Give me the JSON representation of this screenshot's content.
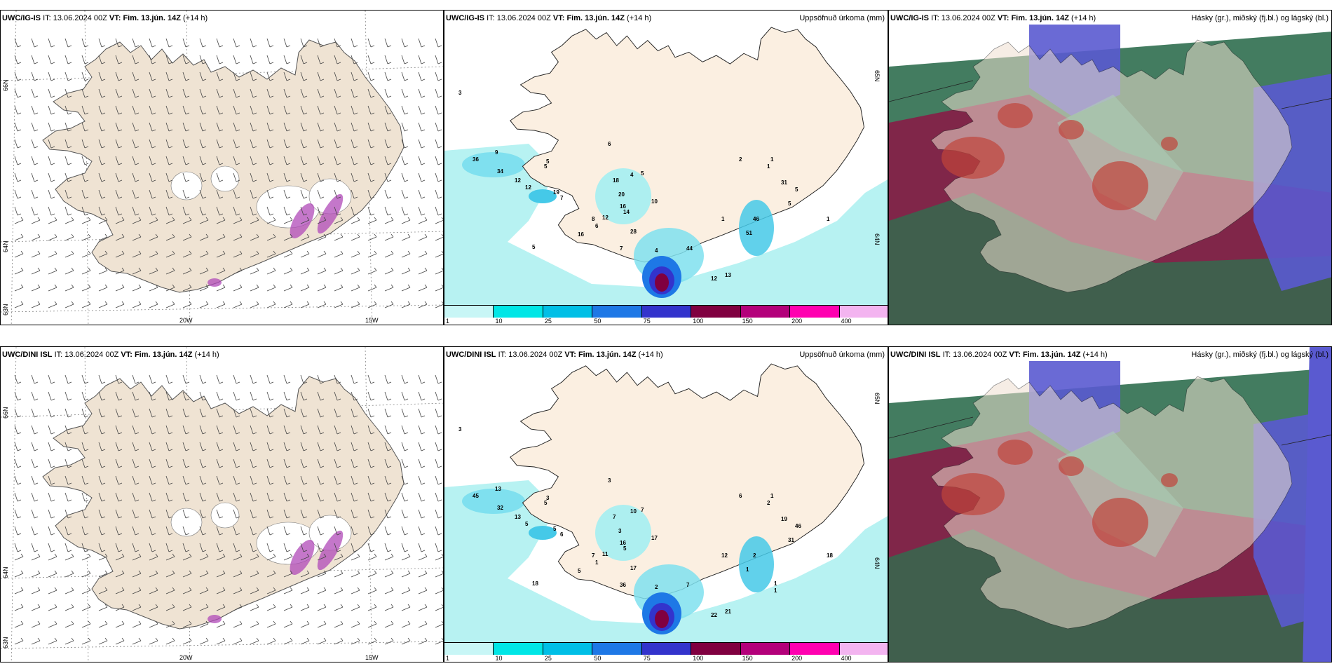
{
  "rows": [
    {
      "model": "UWC/IG-IS",
      "wind_panel": {
        "model": "UWC/IG-IS",
        "it_label": "IT:",
        "it_value": "13.06.2024 00Z",
        "vt_label": "VT: Fim. 13.jún. 14Z",
        "lead": "(+14 h)",
        "lat_labels": [
          "66N",
          "64N",
          "63N"
        ],
        "lon_labels": [
          "20W",
          "15W"
        ]
      },
      "precip_panel": {
        "model": "UWC/IG-IS",
        "it_label": "IT:",
        "it_value": "13.06.2024 00Z",
        "vt_label": "VT: Fim. 13.jún. 14Z",
        "lead": "(+14 h)",
        "field": "Uppsöfnuð úrkoma (mm)",
        "lat_labels": [
          "65N",
          "64N"
        ],
        "values": [
          "3",
          "36",
          "9",
          "5",
          "34",
          "12",
          "12",
          "19",
          "7",
          "6",
          "5",
          "6",
          "18",
          "20",
          "4",
          "5",
          "16",
          "10",
          "12",
          "8",
          "14",
          "28",
          "16",
          "7",
          "5",
          "4",
          "44",
          "12",
          "13",
          "1",
          "2",
          "1",
          "1",
          "31",
          "5",
          "5",
          "1",
          "46",
          "51"
        ]
      },
      "cloud_panel": {
        "model": "UWC/IG-IS",
        "it_label": "IT:",
        "it_value": "13.06.2024 00Z",
        "vt_label": "VT: Fim. 13.jún. 14Z",
        "lead": "(+14 h)",
        "field": "Hásky (gr.), miðský (fj.bl.) og lágský (bl.)"
      }
    },
    {
      "model": "UWC/DINI ISL",
      "wind_panel": {
        "model": "UWC/DINI ISL",
        "it_label": "IT:",
        "it_value": "13.06.2024 00Z",
        "vt_label": "VT: Fim. 13.jún. 14Z",
        "lead": "(+14 h)",
        "lat_labels": [
          "66N",
          "64N",
          "63N"
        ],
        "lon_labels": [
          "20W",
          "15W"
        ]
      },
      "precip_panel": {
        "model": "UWC/DINI ISL",
        "it_label": "IT:",
        "it_value": "13.06.2024 00Z",
        "vt_label": "VT: Fim. 13.jún. 14Z",
        "lead": "(+14 h)",
        "field": "Uppsöfnuð úrkoma (mm)",
        "lat_labels": [
          "65N",
          "64N"
        ],
        "values": [
          "3",
          "45",
          "13",
          "5",
          "32",
          "13",
          "5",
          "5",
          "6",
          "3",
          "3",
          "1",
          "7",
          "3",
          "10",
          "7",
          "16",
          "17",
          "11",
          "7",
          "5",
          "17",
          "5",
          "36",
          "18",
          "2",
          "7",
          "22",
          "21",
          "12",
          "6",
          "2",
          "1",
          "19",
          "46",
          "31",
          "18",
          "2",
          "1",
          "1",
          "1"
        ]
      },
      "cloud_panel": {
        "model": "UWC/DINI ISL",
        "it_label": "IT:",
        "it_value": "13.06.2024 00Z",
        "vt_label": "VT: Fim. 13.jún. 14Z",
        "lead": "(+14 h)",
        "field": "Hásky (gr.), miðský (fj.bl.) og lágský (bl.)"
      }
    }
  ],
  "colorbar": {
    "ticks": [
      "1",
      "10",
      "25",
      "50",
      "75",
      "100",
      "150",
      "200",
      "400"
    ],
    "colors": [
      "#c8f6f6",
      "#00e6e6",
      "#00bfe6",
      "#1e78e6",
      "#3333cc",
      "#800040",
      "#b3007a",
      "#ff00b0",
      "#f3b4f0"
    ]
  },
  "colors": {
    "land_wind": "#efe3d3",
    "land_precip": "#fbefe1",
    "precip_light": "#b7f2f2",
    "cloud_low": "#5a5ad0",
    "cloud_mid": "#2f6e4f",
    "cloud_high": "#8b1845"
  }
}
